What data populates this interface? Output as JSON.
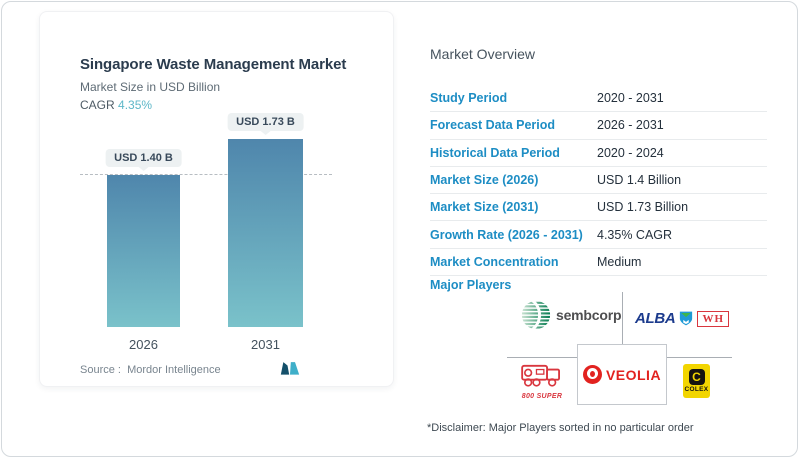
{
  "chart_card": {
    "title": "Singapore Waste Management Market",
    "subtitle": "Market Size in USD Billion",
    "cagr_label": "CAGR",
    "cagr_value": "4.35%",
    "source_label": "Source :",
    "source_value": "Mordor Intelligence",
    "logo_name": "mordor-intelligence-logo"
  },
  "chart_data": {
    "type": "bar",
    "categories": [
      "2026",
      "2031"
    ],
    "values": [
      1.4,
      1.73
    ],
    "bar_labels": [
      "USD 1.40 B",
      "USD 1.73 B"
    ],
    "title": "Singapore Waste Management Market",
    "ylabel": "Market Size in USD Billion",
    "ylim": [
      0,
      2.0
    ],
    "reference_line": 1.4,
    "grid": false,
    "legend": false,
    "bar_gradient_top": "#4f86ac",
    "bar_gradient_bottom": "#7ac2ca"
  },
  "overview": {
    "title": "Market Overview",
    "rows": [
      {
        "label": "Study Period",
        "value": "2020 - 2031"
      },
      {
        "label": "Forecast Data Period",
        "value": "2026 - 2031"
      },
      {
        "label": "Historical Data Period",
        "value": "2020 - 2024"
      },
      {
        "label": "Market Size (2026)",
        "value": "USD 1.4 Billion"
      },
      {
        "label": "Market Size (2031)",
        "value": "USD 1.73 Billion"
      },
      {
        "label": "Growth Rate (2026 - 2031)",
        "value": "4.35% CAGR"
      },
      {
        "label": "Market Concentration",
        "value": "Medium"
      }
    ],
    "major_players_label": "Major Players",
    "disclaimer": "*Disclaimer: Major Players sorted in no particular order"
  },
  "players": {
    "sembcorp_text": "sembcorp",
    "alba_text": "ALBA",
    "wh_text": "WH",
    "super800_text": "800 SUPER",
    "veolia_text": "VEOLIA",
    "colex_letter": "C",
    "colex_text": "COLEX"
  },
  "colors": {
    "accent_blue_label": "#1d8dc4",
    "cagr_teal": "#5db7c8",
    "bar_top": "#4f86ac",
    "bar_bottom": "#7ac2ca",
    "veolia_red": "#e2221f",
    "alba_navy": "#1c3b8d",
    "colex_yellow": "#f2d500",
    "sembcorp_green": "#00794d"
  }
}
